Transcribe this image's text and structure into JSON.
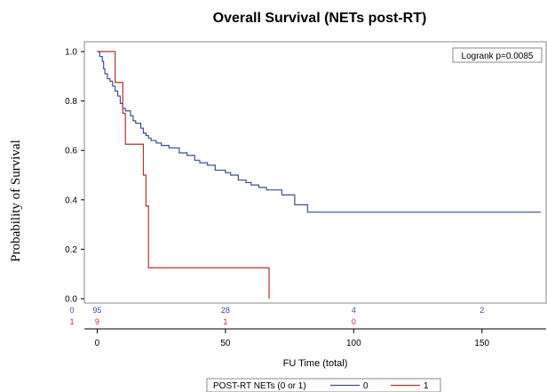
{
  "chart_data": {
    "type": "line",
    "title": "Overall Survival (NETs post-RT)",
    "ylabel": "Probability of Survival",
    "xlabel": "FU Time (total)",
    "xlim": [
      -5,
      175
    ],
    "ylim": [
      0,
      1.0
    ],
    "x_ticks": [
      "0",
      "50",
      "100",
      "150"
    ],
    "x_tick_values": [
      0,
      50,
      100,
      150
    ],
    "y_ticks": [
      "0.0",
      "0.2",
      "0.4",
      "0.6",
      "0.8",
      "1.0"
    ],
    "y_tick_values": [
      0,
      0.2,
      0.4,
      0.6,
      0.8,
      1.0
    ],
    "annotation": "Logrank p=0.0085",
    "legend": {
      "title": "POST-RT NETs (0 or 1)",
      "placement": "bottom"
    },
    "series": [
      {
        "name": "0",
        "color": "#3b4f9a",
        "x": [
          0,
          1,
          2,
          2.5,
          3,
          4,
          5,
          6,
          7,
          8,
          9,
          10,
          11,
          13,
          14,
          15,
          17,
          18,
          19,
          20,
          21,
          23,
          25,
          28,
          32,
          35,
          38,
          40,
          43,
          46,
          50,
          52,
          55,
          58,
          60,
          63,
          66,
          72,
          77,
          82,
          173
        ],
        "y": [
          1.0,
          0.98,
          0.96,
          0.93,
          0.91,
          0.89,
          0.88,
          0.86,
          0.84,
          0.82,
          0.79,
          0.77,
          0.76,
          0.74,
          0.72,
          0.71,
          0.69,
          0.67,
          0.66,
          0.65,
          0.64,
          0.63,
          0.62,
          0.61,
          0.59,
          0.58,
          0.56,
          0.55,
          0.54,
          0.52,
          0.51,
          0.5,
          0.48,
          0.47,
          0.46,
          0.45,
          0.44,
          0.42,
          0.38,
          0.35,
          0.35
        ]
      },
      {
        "name": "1",
        "color": "#b5332e",
        "x": [
          0,
          5,
          7,
          8,
          10,
          11,
          18,
          19,
          20,
          67,
          67
        ],
        "y": [
          1.0,
          1.0,
          0.875,
          0.875,
          0.75,
          0.625,
          0.5,
          0.375,
          0.125,
          0.125,
          0.0
        ]
      }
    ],
    "risk_table": [
      {
        "group": "0",
        "color": "#3b4f9a",
        "counts": [
          "95",
          "28",
          "4",
          "2"
        ],
        "times": [
          0,
          50,
          100,
          150
        ]
      },
      {
        "group": "1",
        "color": "#b5332e",
        "counts": [
          "9",
          "1",
          "0"
        ],
        "times": [
          0,
          50,
          100
        ]
      }
    ]
  }
}
